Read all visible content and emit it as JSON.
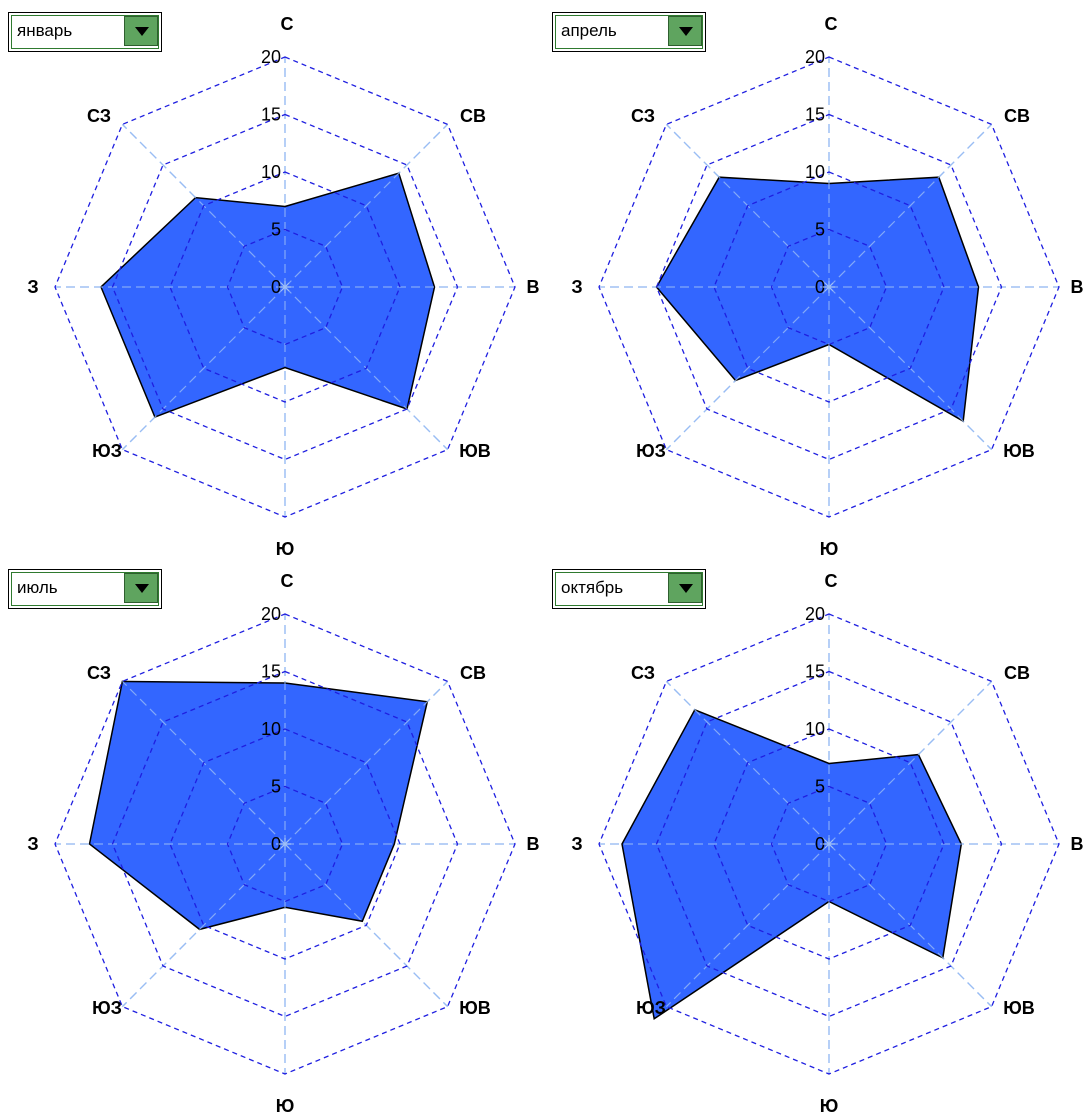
{
  "chart_data": [
    {
      "type": "radar",
      "selector": "январь",
      "categories": [
        "С",
        "СВ",
        "В",
        "ЮВ",
        "Ю",
        "ЮЗ",
        "З",
        "СЗ"
      ],
      "values": [
        7,
        14,
        13,
        15,
        7,
        16,
        16,
        11
      ],
      "ticks": [
        "0",
        "5",
        "10",
        "15",
        "20"
      ],
      "rlim": [
        0,
        20
      ],
      "fill_color": "#3366ff",
      "grid_color": "#1f1fe0",
      "spoke_color": "#8ab4f0"
    },
    {
      "type": "radar",
      "selector": "апрель",
      "categories": [
        "С",
        "СВ",
        "В",
        "ЮВ",
        "Ю",
        "ЮЗ",
        "З",
        "СЗ"
      ],
      "values": [
        9,
        13.5,
        13,
        16.5,
        5,
        11.5,
        15,
        13.5
      ],
      "ticks": [
        "0",
        "5",
        "10",
        "15",
        "20"
      ],
      "rlim": [
        0,
        20
      ],
      "fill_color": "#3366ff",
      "grid_color": "#1f1fe0",
      "spoke_color": "#8ab4f0"
    },
    {
      "type": "radar",
      "selector": "июль",
      "categories": [
        "С",
        "СВ",
        "В",
        "ЮВ",
        "Ю",
        "ЮЗ",
        "З",
        "СЗ"
      ],
      "values": [
        14,
        17.5,
        9.5,
        9.5,
        5.5,
        10.5,
        17,
        20
      ],
      "ticks": [
        "0",
        "5",
        "10",
        "15",
        "20"
      ],
      "rlim": [
        0,
        20
      ],
      "fill_color": "#3366ff",
      "grid_color": "#1f1fe0",
      "spoke_color": "#8ab4f0"
    },
    {
      "type": "radar",
      "selector": "октябрь",
      "categories": [
        "С",
        "СВ",
        "В",
        "ЮВ",
        "Ю",
        "ЮЗ",
        "З",
        "СЗ"
      ],
      "values": [
        7,
        11,
        11.5,
        14,
        5,
        21.5,
        18,
        16.5
      ],
      "ticks": [
        "0",
        "5",
        "10",
        "15",
        "20"
      ],
      "rlim": [
        0,
        20
      ],
      "fill_color": "#3366ff",
      "grid_color": "#1f1fe0",
      "spoke_color": "#8ab4f0"
    }
  ]
}
